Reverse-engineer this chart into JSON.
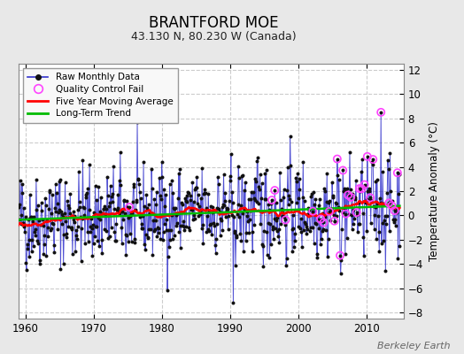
{
  "title": "BRANTFORD MOE",
  "subtitle": "43.130 N, 80.230 W (Canada)",
  "ylabel": "Temperature Anomaly (°C)",
  "watermark": "Berkeley Earth",
  "xlim": [
    1959.0,
    2015.5
  ],
  "ylim": [
    -8.5,
    12.5
  ],
  "yticks": [
    -8,
    -6,
    -4,
    -2,
    0,
    2,
    4,
    6,
    8,
    10,
    12
  ],
  "xticks": [
    1960,
    1970,
    1980,
    1990,
    2000,
    2010
  ],
  "outer_bg": "#e8e8e8",
  "plot_bg": "#ffffff",
  "grid_color": "#cccccc",
  "raw_line_color": "#3333cc",
  "raw_marker_color": "#111111",
  "qc_fail_color": "#ff44ff",
  "moving_avg_color": "#ff0000",
  "trend_color": "#00bb00",
  "seed": 42,
  "start_year": 1959,
  "end_year": 2015,
  "moving_avg_window": 60
}
